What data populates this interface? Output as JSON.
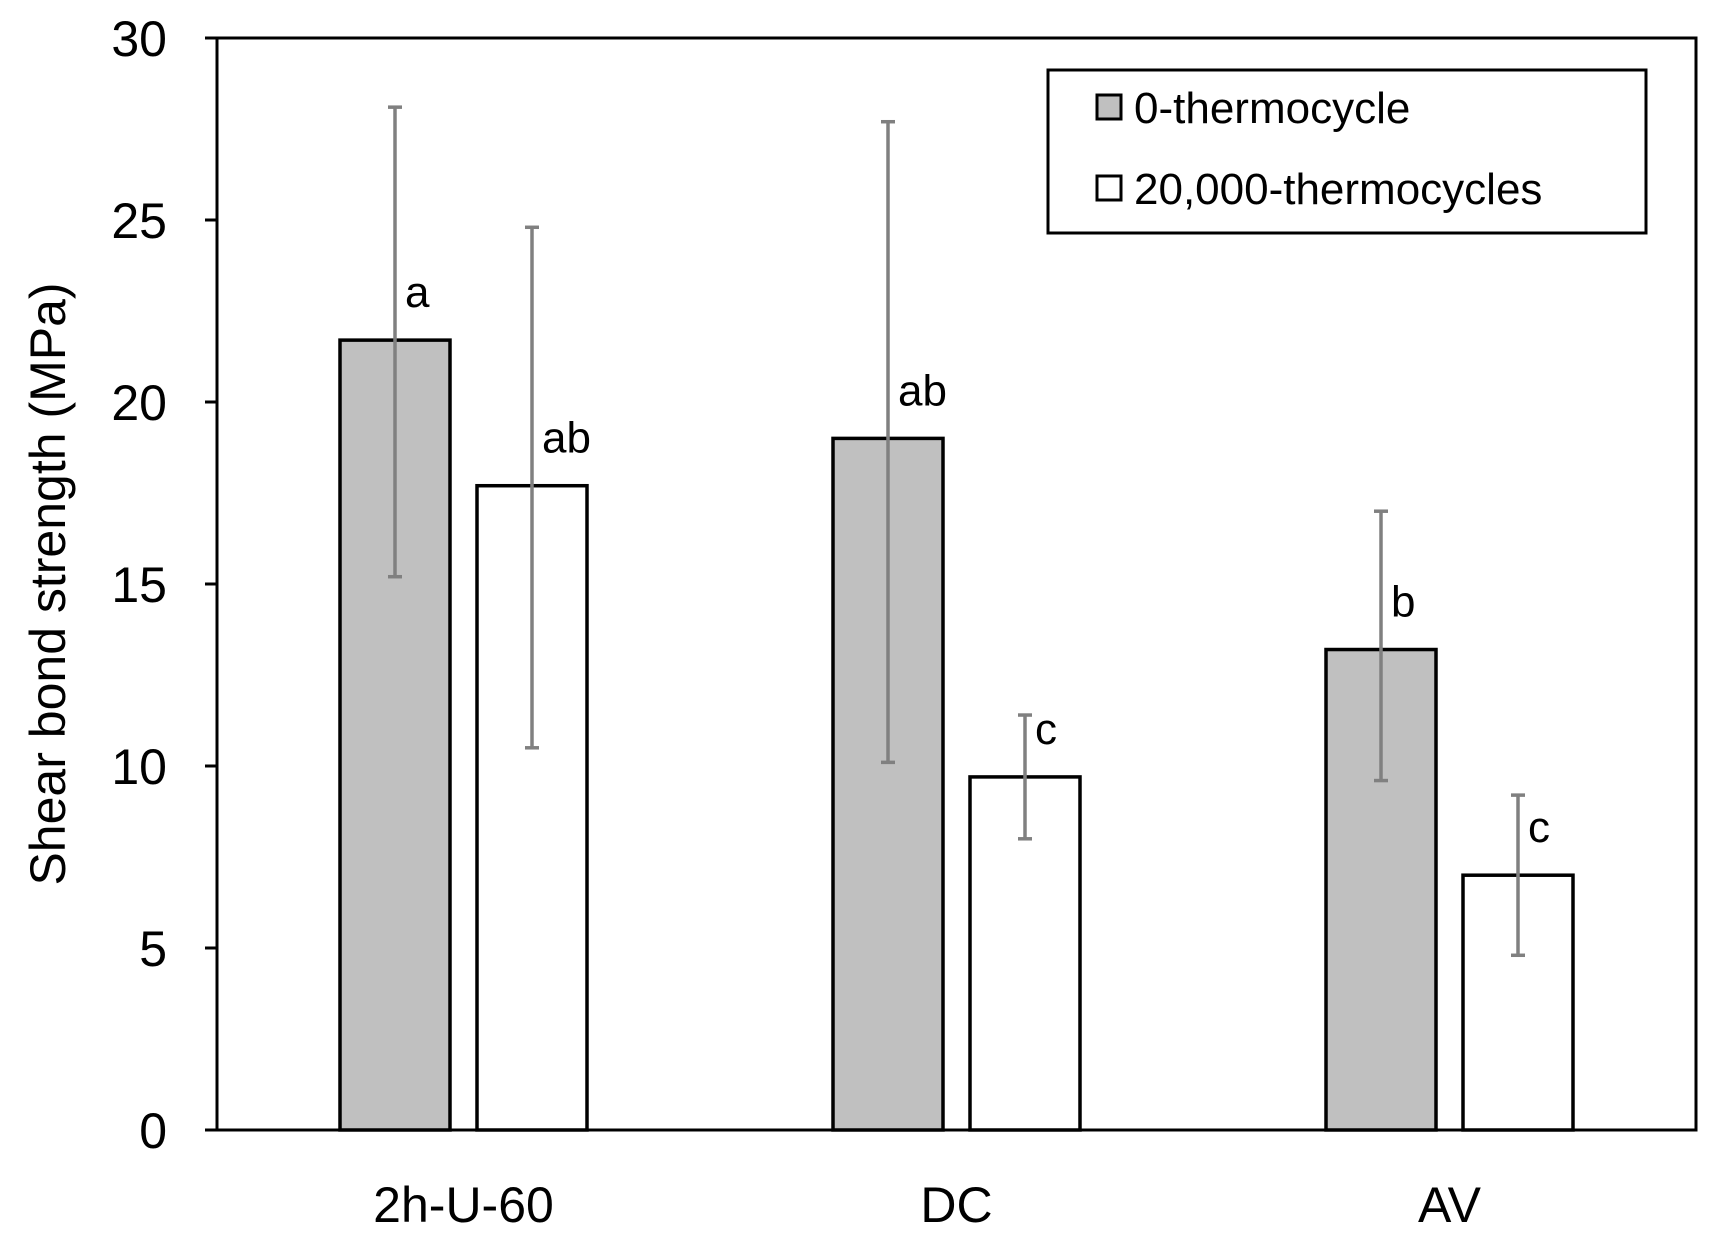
{
  "chart_data": {
    "type": "bar",
    "title": "",
    "xlabel": "",
    "ylabel": "Shear bond strength (MPa)",
    "ylim": [
      0,
      30
    ],
    "yticks": [
      0,
      5,
      10,
      15,
      20,
      25,
      30
    ],
    "ytick_labels": [
      "0",
      "5",
      "10",
      "15",
      "20",
      "25",
      "30"
    ],
    "grid": false,
    "legend_position": "top-right",
    "categories": [
      "2h-U-60",
      "DC",
      "AV"
    ],
    "series": [
      {
        "name": "0-thermocycle",
        "color": "#c0c0c0",
        "values": [
          21.7,
          19.0,
          13.2
        ],
        "error_low": [
          15.2,
          10.1,
          9.6
        ],
        "error_high": [
          28.1,
          27.7,
          17.0
        ],
        "significance": [
          "a",
          "ab",
          "b"
        ]
      },
      {
        "name": "20,000-thermocycles",
        "color": "#ffffff",
        "values": [
          17.7,
          9.7,
          7.0
        ],
        "error_low": [
          10.5,
          8.0,
          4.8
        ],
        "error_high": [
          24.8,
          11.4,
          9.2
        ],
        "significance": [
          "ab",
          "c",
          "c"
        ]
      }
    ],
    "error_bar_color": "#808080"
  }
}
